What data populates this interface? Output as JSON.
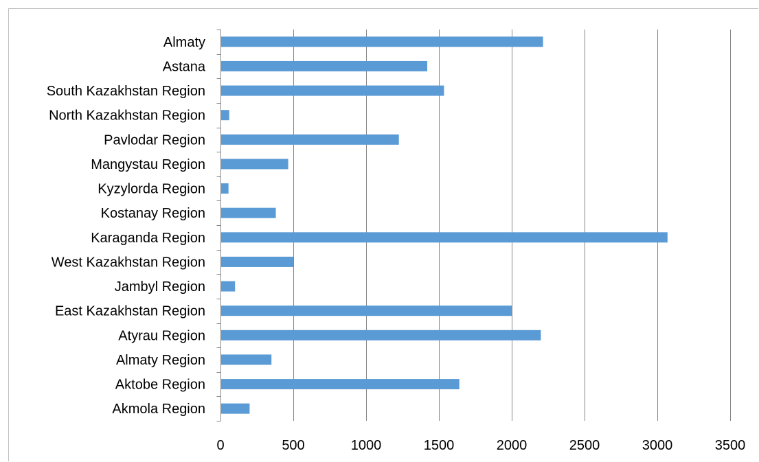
{
  "chart_data": {
    "type": "bar",
    "orientation": "horizontal",
    "categories": [
      "Akmola Region",
      "Aktobe Region",
      "Almaty Region",
      "Atyrau Region",
      "East Kazakhstan Region",
      "Jambyl Region",
      "West Kazakhstan Region",
      "Karaganda Region",
      "Kostanay Region",
      "Kyzylorda Region",
      "Mangystau Region",
      "Pavlodar Region",
      "North Kazakhstan Region",
      "South Kazakhstan Region",
      "Astana",
      "Almaty"
    ],
    "values": [
      200,
      1640,
      350,
      2200,
      2000,
      100,
      500,
      3070,
      380,
      55,
      465,
      1225,
      60,
      1535,
      1420,
      2215
    ],
    "xlim": [
      0,
      3500
    ],
    "xticks": [
      0,
      500,
      1000,
      1500,
      2000,
      2500,
      3000,
      3500
    ],
    "grid": "vertical",
    "legend": "none",
    "bar_color": "#5b9bd5",
    "axis_color": "#868686",
    "grid_color": "#868686"
  }
}
